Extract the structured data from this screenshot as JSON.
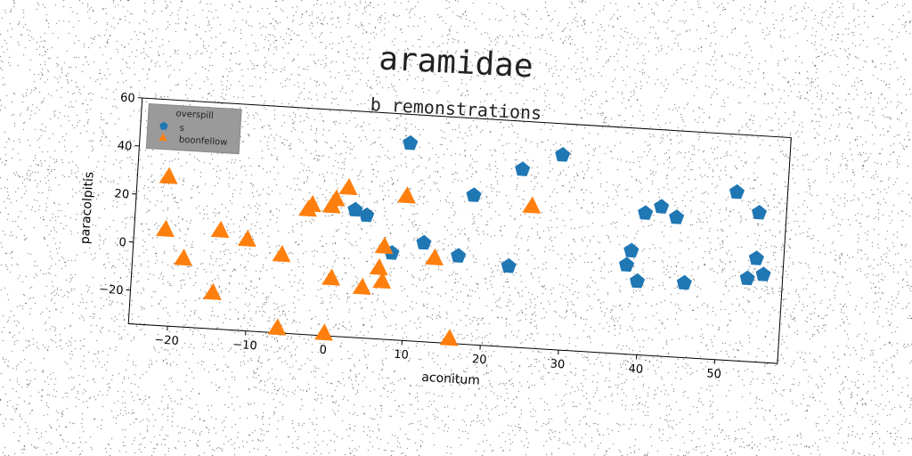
{
  "chart_data": {
    "type": "scatter",
    "title": "aramidae",
    "subtitle": "b remonstrations",
    "xlabel": "aconitum",
    "ylabel": "paracolpitis",
    "xlim": [
      -25,
      58
    ],
    "ylim": [
      -34,
      60
    ],
    "xticks": [
      -20,
      -10,
      0,
      10,
      20,
      30,
      40,
      50
    ],
    "yticks": [
      -20,
      0,
      20,
      40,
      60
    ],
    "grid": false,
    "legend": {
      "title": "overspill",
      "placement": "top-left"
    },
    "series": [
      {
        "name": "s",
        "marker": "pentagon",
        "color": "#1f77b4",
        "points": [
          [
            9.5,
            48
          ],
          [
            29,
            47
          ],
          [
            24,
            40
          ],
          [
            18,
            28
          ],
          [
            3,
            19
          ],
          [
            4.5,
            17
          ],
          [
            12,
            7
          ],
          [
            16.5,
            2.5
          ],
          [
            8,
            2
          ],
          [
            23,
            -0.5
          ],
          [
            51.5,
            36
          ],
          [
            54.5,
            28
          ],
          [
            42,
            28
          ],
          [
            44,
            24
          ],
          [
            40,
            25
          ],
          [
            38.5,
            9
          ],
          [
            38,
            3
          ],
          [
            39.5,
            -3.5
          ],
          [
            45.5,
            -3
          ],
          [
            54.5,
            9
          ],
          [
            55.5,
            2.5
          ],
          [
            53.5,
            0.5
          ]
        ]
      },
      {
        "name": "boonfellow",
        "marker": "triangle",
        "color": "#ff7f0e",
        "points": [
          [
            -21,
            28
          ],
          [
            -21,
            6
          ],
          [
            -18.5,
            -5.5
          ],
          [
            -14,
            7
          ],
          [
            -10.5,
            4
          ],
          [
            -14.5,
            -19
          ],
          [
            -6,
            -1.5
          ],
          [
            -2.5,
            20
          ],
          [
            -3,
            18
          ],
          [
            0.5,
            23
          ],
          [
            0,
            20
          ],
          [
            2,
            28
          ],
          [
            9.5,
            26
          ],
          [
            25.5,
            25
          ],
          [
            7,
            4.5
          ],
          [
            6.5,
            -4.5
          ],
          [
            7,
            -10
          ],
          [
            4.5,
            -13
          ],
          [
            0.5,
            -10
          ],
          [
            13.5,
            1
          ],
          [
            -6,
            -32
          ],
          [
            0,
            -33
          ],
          [
            16,
            -32
          ]
        ]
      }
    ]
  }
}
